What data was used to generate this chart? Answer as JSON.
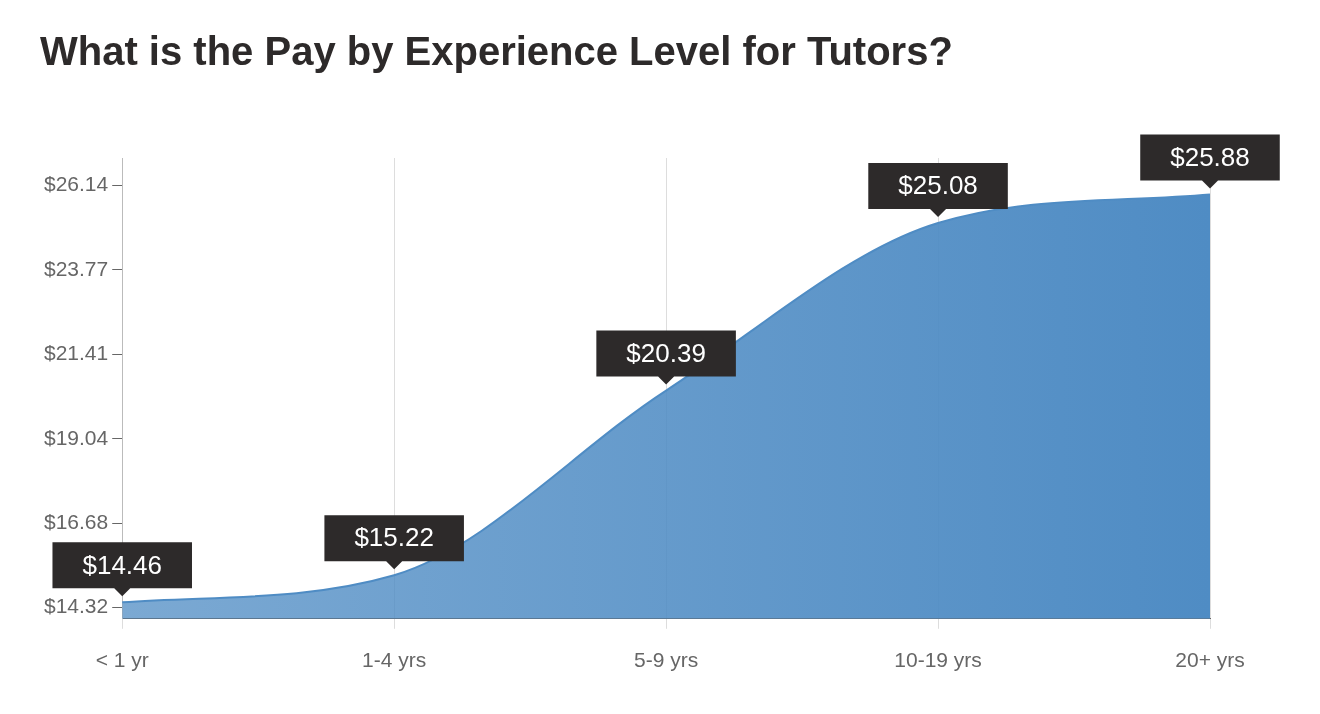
{
  "chart_data": {
    "type": "area",
    "title": "What is the Pay by Experience Level for Tutors?",
    "categories": [
      "< 1 yr",
      "1-4 yrs",
      "5-9 yrs",
      "10-19 yrs",
      "20+ yrs"
    ],
    "series": [
      {
        "color": "#4f8cc4",
        "values": [
          14.46,
          15.22,
          20.39,
          25.08,
          25.88
        ],
        "value_labels": [
          "$14.46",
          "$15.22",
          "$20.39",
          "$25.08",
          "$25.88"
        ]
      }
    ],
    "ylim": [
      14.0,
      26.9
    ],
    "yticks": [
      {
        "value": 14.32,
        "label": "$14.32"
      },
      {
        "value": 16.68,
        "label": "$16.68"
      },
      {
        "value": 19.04,
        "label": "$19.04"
      },
      {
        "value": 21.41,
        "label": "$21.41"
      },
      {
        "value": 23.77,
        "label": "$23.77"
      },
      {
        "value": 26.14,
        "label": "$26.14"
      }
    ],
    "grid": "x",
    "legend": false
  }
}
